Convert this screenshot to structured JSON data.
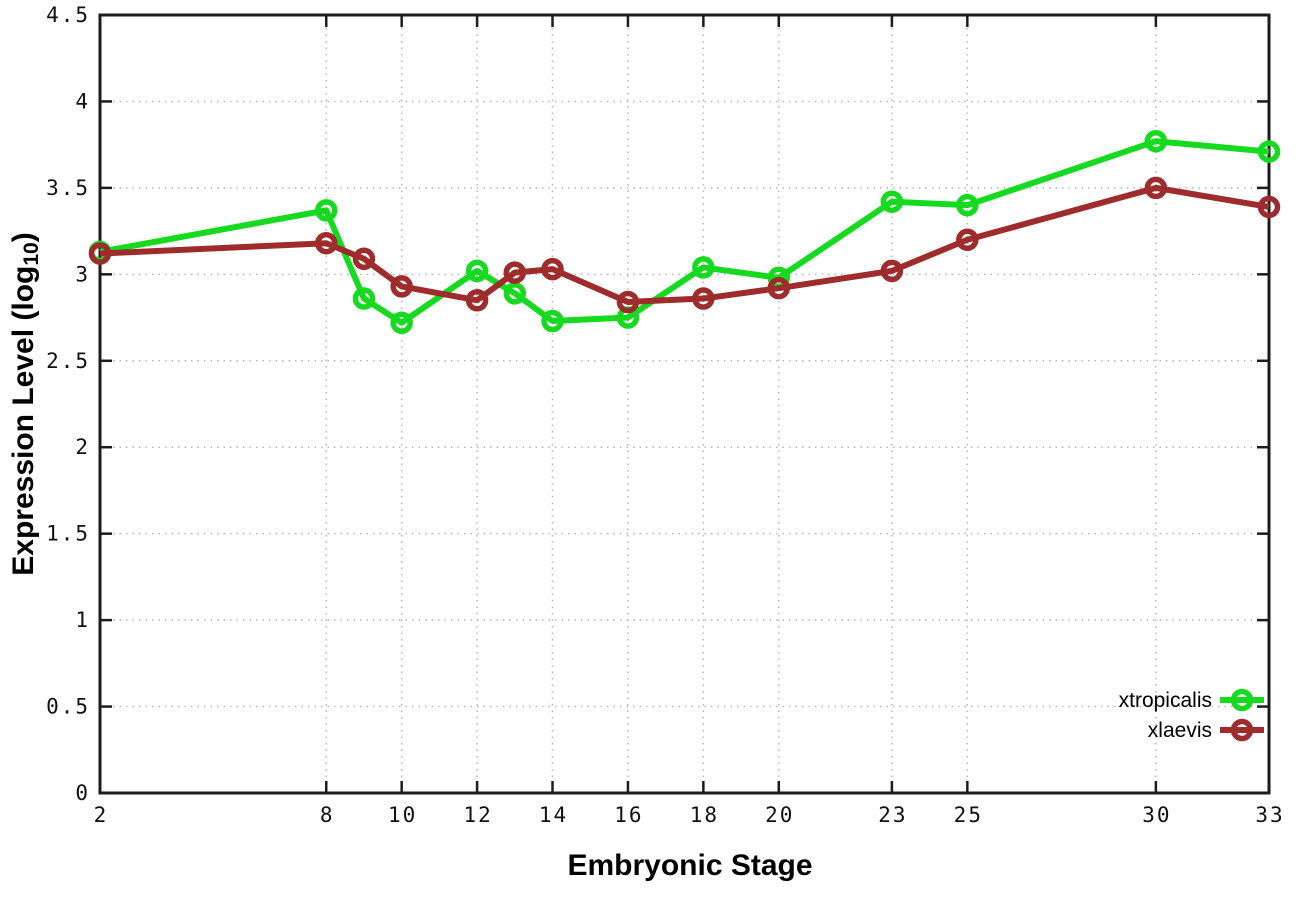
{
  "figure": {
    "background": "#ffffff",
    "border_color": "#1c1c1c",
    "grid_color": "#b8b8b8",
    "tick_label_color": "#111111",
    "legend_text_color": "#000000"
  },
  "chart_data": {
    "type": "line",
    "title": "",
    "xlabel": "Embryonic Stage",
    "ylabel": {
      "prefix": "Expression Level (log",
      "subscript": "10",
      "suffix": ")"
    },
    "x": [
      2,
      8,
      9,
      10,
      12,
      13,
      14,
      16,
      18,
      20,
      23,
      25,
      30,
      33
    ],
    "xtick_labels": [
      "2",
      "8",
      "10",
      "12",
      "14",
      "16",
      "18",
      "20",
      "23",
      "25",
      "30",
      "33"
    ],
    "ytick_labels": [
      "0",
      "0.5",
      "1",
      "1.5",
      "2",
      "2.5",
      "3",
      "3.5",
      "4",
      "4.5"
    ],
    "xlim": [
      2,
      33
    ],
    "ylim": [
      0,
      4.5
    ],
    "grid": true,
    "marker": "open-circle",
    "legend_position": "bottom-right",
    "series": [
      {
        "name": "xtropicalis",
        "color": "#16da20",
        "values": [
          3.13,
          3.37,
          2.86,
          2.72,
          3.02,
          2.89,
          2.73,
          2.75,
          3.04,
          2.98,
          3.42,
          3.4,
          3.77,
          3.71
        ]
      },
      {
        "name": "xlaevis",
        "color": "#9e2c2c",
        "values": [
          3.12,
          3.18,
          3.09,
          2.93,
          2.85,
          3.01,
          3.03,
          2.84,
          2.86,
          2.92,
          3.02,
          3.2,
          3.5,
          3.39
        ]
      }
    ]
  }
}
